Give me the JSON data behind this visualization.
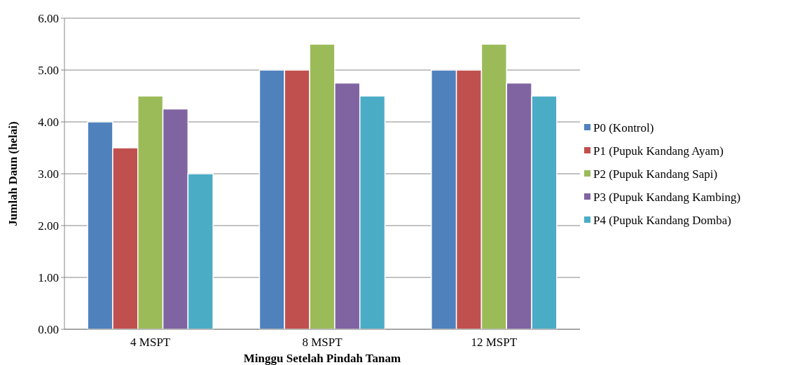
{
  "chart_data": {
    "type": "bar",
    "xlabel": "Minggu Setelah Pindah Tanam",
    "ylabel": "Jumlah Daun (helai)",
    "categories": [
      "4 MSPT",
      "8 MSPT",
      "12 MSPT"
    ],
    "series": [
      {
        "name": "P0 (Kontrol)",
        "color": "#4f81bd",
        "values": [
          4.0,
          5.0,
          5.0
        ]
      },
      {
        "name": "P1 (Pupuk Kandang Ayam)",
        "color": "#c0504d",
        "values": [
          3.5,
          5.0,
          5.0
        ]
      },
      {
        "name": "P2 (Pupuk Kandang Sapi)",
        "color": "#9bbb59",
        "values": [
          4.5,
          5.5,
          5.5
        ]
      },
      {
        "name": "P3 (Pupuk Kandang Kambing)",
        "color": "#8064a2",
        "values": [
          4.25,
          4.75,
          4.75
        ]
      },
      {
        "name": "P4 (Pupuk Kandang Domba)",
        "color": "#4bacc6",
        "values": [
          3.0,
          4.5,
          4.5
        ]
      }
    ],
    "ylim": [
      0,
      6
    ],
    "yticks": [
      {
        "value": 0,
        "label": "0.00"
      },
      {
        "value": 1,
        "label": "1.00"
      },
      {
        "value": 2,
        "label": "2.00"
      },
      {
        "value": 3,
        "label": "3.00"
      },
      {
        "value": 4,
        "label": "4.00"
      },
      {
        "value": 5,
        "label": "5.00"
      },
      {
        "value": 6,
        "label": "6.00"
      }
    ],
    "grid": "y",
    "legend": "right"
  }
}
